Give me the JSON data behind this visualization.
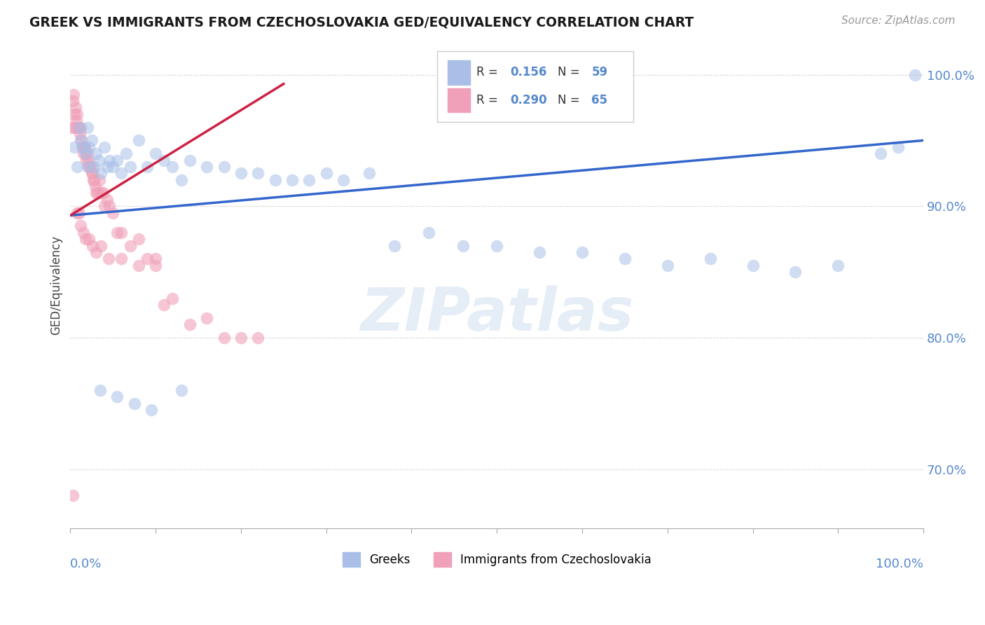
{
  "title": "GREEK VS IMMIGRANTS FROM CZECHOSLOVAKIA GED/EQUIVALENCY CORRELATION CHART",
  "source": "Source: ZipAtlas.com",
  "ylabel": "GED/Equivalency",
  "ytick_labels": [
    "70.0%",
    "80.0%",
    "90.0%",
    "100.0%"
  ],
  "ytick_values": [
    0.7,
    0.8,
    0.9,
    1.0
  ],
  "xlim": [
    0.0,
    1.0
  ],
  "ylim": [
    0.655,
    1.025
  ],
  "watermark": "ZIPatlas",
  "blue_color": "#A8C0E8",
  "pink_color": "#F0A0B8",
  "line_blue": "#3366CC",
  "line_pink": "#CC2244",
  "title_color": "#1a1a1a",
  "axis_label_color": "#5588CC",
  "legend_r1_label": "R = ",
  "legend_r1_val": "0.156",
  "legend_n1_label": "N = ",
  "legend_n1_val": "59",
  "legend_r2_label": "R = ",
  "legend_r2_val": "0.290",
  "legend_n2_label": "N = ",
  "legend_n2_val": "65",
  "greek_x": [
    0.005,
    0.008,
    0.01,
    0.012,
    0.015,
    0.018,
    0.02,
    0.022,
    0.025,
    0.028,
    0.03,
    0.033,
    0.036,
    0.04,
    0.043,
    0.046,
    0.05,
    0.055,
    0.06,
    0.065,
    0.07,
    0.08,
    0.09,
    0.1,
    0.11,
    0.12,
    0.13,
    0.14,
    0.16,
    0.18,
    0.2,
    0.22,
    0.24,
    0.26,
    0.28,
    0.3,
    0.32,
    0.35,
    0.38,
    0.42,
    0.46,
    0.5,
    0.55,
    0.6,
    0.65,
    0.7,
    0.75,
    0.8,
    0.85,
    0.9,
    0.95,
    0.97,
    0.99,
    0.02,
    0.035,
    0.055,
    0.075,
    0.095,
    0.13
  ],
  "greek_y": [
    0.945,
    0.93,
    0.96,
    0.95,
    0.945,
    0.94,
    0.96,
    0.945,
    0.95,
    0.93,
    0.94,
    0.935,
    0.925,
    0.945,
    0.93,
    0.935,
    0.93,
    0.935,
    0.925,
    0.94,
    0.93,
    0.95,
    0.93,
    0.94,
    0.935,
    0.93,
    0.92,
    0.935,
    0.93,
    0.93,
    0.925,
    0.925,
    0.92,
    0.92,
    0.92,
    0.925,
    0.92,
    0.925,
    0.87,
    0.88,
    0.87,
    0.87,
    0.865,
    0.865,
    0.86,
    0.855,
    0.86,
    0.855,
    0.85,
    0.855,
    0.94,
    0.945,
    1.0,
    0.93,
    0.76,
    0.755,
    0.75,
    0.745,
    0.76
  ],
  "czech_x": [
    0.002,
    0.003,
    0.004,
    0.005,
    0.006,
    0.007,
    0.008,
    0.009,
    0.01,
    0.011,
    0.012,
    0.013,
    0.014,
    0.015,
    0.016,
    0.017,
    0.018,
    0.019,
    0.02,
    0.021,
    0.022,
    0.023,
    0.024,
    0.025,
    0.026,
    0.027,
    0.028,
    0.029,
    0.03,
    0.032,
    0.034,
    0.036,
    0.038,
    0.04,
    0.043,
    0.046,
    0.05,
    0.055,
    0.06,
    0.07,
    0.08,
    0.09,
    0.1,
    0.11,
    0.12,
    0.14,
    0.16,
    0.18,
    0.2,
    0.22,
    0.008,
    0.01,
    0.012,
    0.015,
    0.018,
    0.022,
    0.026,
    0.03,
    0.036,
    0.045,
    0.06,
    0.08,
    0.1,
    0.003,
    0.005
  ],
  "czech_y": [
    0.96,
    0.98,
    0.985,
    0.97,
    0.975,
    0.965,
    0.97,
    0.96,
    0.96,
    0.955,
    0.96,
    0.95,
    0.945,
    0.94,
    0.945,
    0.945,
    0.94,
    0.935,
    0.94,
    0.935,
    0.93,
    0.93,
    0.93,
    0.925,
    0.925,
    0.92,
    0.92,
    0.915,
    0.91,
    0.91,
    0.92,
    0.91,
    0.91,
    0.9,
    0.905,
    0.9,
    0.895,
    0.88,
    0.88,
    0.87,
    0.875,
    0.86,
    0.86,
    0.825,
    0.83,
    0.81,
    0.815,
    0.8,
    0.8,
    0.8,
    0.895,
    0.895,
    0.885,
    0.88,
    0.875,
    0.875,
    0.87,
    0.865,
    0.87,
    0.86,
    0.86,
    0.855,
    0.855,
    0.68,
    0.96
  ],
  "blue_line_x": [
    0.0,
    1.0
  ],
  "blue_line_y": [
    0.893,
    0.95
  ],
  "pink_line_x": [
    0.0,
    0.25
  ],
  "pink_line_y": [
    0.893,
    0.993
  ]
}
